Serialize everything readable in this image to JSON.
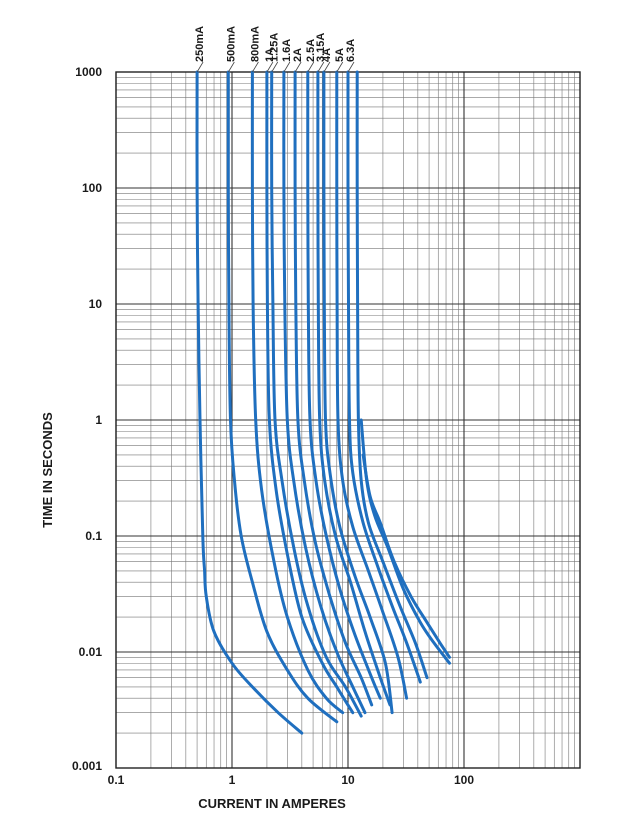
{
  "chart_data": {
    "type": "line",
    "title": "",
    "xlabel": "CURRENT IN AMPERES",
    "ylabel": "TIME IN SECONDS",
    "xscale": "log",
    "yscale": "log",
    "xlim": [
      0.1,
      1000
    ],
    "ylim": [
      0.001,
      1000
    ],
    "grid": true,
    "legend": "curve labels at top",
    "x_ticks": [
      0.1,
      1,
      10,
      100
    ],
    "x_tick_labels": [
      "0.1",
      "1",
      "10",
      "100"
    ],
    "y_ticks": [
      0.001,
      0.01,
      0.1,
      1,
      10,
      100,
      1000
    ],
    "y_tick_labels": [
      "0.001",
      "0.01",
      "0.1",
      "1",
      "10",
      "100",
      "1000"
    ],
    "line_color": "#1f6fbf",
    "grid_color": "#555555",
    "series": [
      {
        "name": "250mA",
        "points": [
          [
            0.5,
            1000
          ],
          [
            0.5,
            100
          ],
          [
            0.51,
            10
          ],
          [
            0.53,
            1
          ],
          [
            0.56,
            0.1
          ],
          [
            0.58,
            0.05
          ],
          [
            0.6,
            0.03
          ],
          [
            0.7,
            0.015
          ],
          [
            1,
            0.008
          ],
          [
            1.5,
            0.005
          ],
          [
            2.5,
            0.003
          ],
          [
            4,
            0.002
          ]
        ]
      },
      {
        "name": "500mA",
        "points": [
          [
            0.93,
            1000
          ],
          [
            0.93,
            100
          ],
          [
            0.94,
            10
          ],
          [
            0.97,
            1
          ],
          [
            1.05,
            0.3
          ],
          [
            1.2,
            0.1
          ],
          [
            1.5,
            0.04
          ],
          [
            2,
            0.015
          ],
          [
            3,
            0.007
          ],
          [
            4.5,
            0.004
          ],
          [
            8,
            0.0025
          ]
        ]
      },
      {
        "name": "800mA",
        "points": [
          [
            1.5,
            1000
          ],
          [
            1.5,
            100
          ],
          [
            1.52,
            10
          ],
          [
            1.6,
            1
          ],
          [
            1.8,
            0.25
          ],
          [
            2.3,
            0.06
          ],
          [
            3,
            0.02
          ],
          [
            4.5,
            0.007
          ],
          [
            6.5,
            0.004
          ],
          [
            9,
            0.003
          ]
        ]
      },
      {
        "name": "1A",
        "points": [
          [
            2,
            1000
          ],
          [
            2,
            100
          ],
          [
            2.02,
            10
          ],
          [
            2.1,
            1
          ],
          [
            2.4,
            0.25
          ],
          [
            3,
            0.07
          ],
          [
            4,
            0.02
          ],
          [
            6,
            0.008
          ],
          [
            8,
            0.005
          ],
          [
            11,
            0.003
          ]
        ]
      },
      {
        "name": "1.25A",
        "points": [
          [
            2.2,
            1000
          ],
          [
            2.2,
            100
          ],
          [
            2.25,
            10
          ],
          [
            2.35,
            1
          ],
          [
            2.7,
            0.3
          ],
          [
            3.4,
            0.08
          ],
          [
            4.5,
            0.025
          ],
          [
            6.5,
            0.009
          ],
          [
            9.5,
            0.005
          ],
          [
            13,
            0.0028
          ]
        ]
      },
      {
        "name": "1.6A",
        "points": [
          [
            2.8,
            1000
          ],
          [
            2.8,
            100
          ],
          [
            2.85,
            10
          ],
          [
            3,
            1
          ],
          [
            3.4,
            0.3
          ],
          [
            4.3,
            0.08
          ],
          [
            5.8,
            0.025
          ],
          [
            8,
            0.01
          ],
          [
            11,
            0.005
          ],
          [
            14,
            0.003
          ]
        ]
      },
      {
        "name": "2A",
        "points": [
          [
            3.5,
            1000
          ],
          [
            3.5,
            100
          ],
          [
            3.55,
            10
          ],
          [
            3.7,
            1
          ],
          [
            4.2,
            0.3
          ],
          [
            5.2,
            0.09
          ],
          [
            7,
            0.03
          ],
          [
            9.5,
            0.012
          ],
          [
            13,
            0.006
          ],
          [
            16,
            0.0035
          ]
        ]
      },
      {
        "name": "2.5A",
        "points": [
          [
            4.5,
            1000
          ],
          [
            4.5,
            100
          ],
          [
            4.55,
            10
          ],
          [
            4.7,
            1
          ],
          [
            5.3,
            0.3
          ],
          [
            6.5,
            0.1
          ],
          [
            8.5,
            0.035
          ],
          [
            11.5,
            0.014
          ],
          [
            16,
            0.006
          ],
          [
            19,
            0.004
          ]
        ]
      },
      {
        "name": "3.15A",
        "points": [
          [
            5.5,
            1000
          ],
          [
            5.5,
            100
          ],
          [
            5.55,
            10
          ],
          [
            5.7,
            1
          ],
          [
            6.3,
            0.3
          ],
          [
            7.8,
            0.1
          ],
          [
            10.5,
            0.04
          ],
          [
            14,
            0.015
          ],
          [
            19,
            0.006
          ],
          [
            23,
            0.0035
          ]
        ]
      },
      {
        "name": "4A",
        "points": [
          [
            6.2,
            1000
          ],
          [
            6.2,
            100
          ],
          [
            6.25,
            10
          ],
          [
            6.4,
            1
          ],
          [
            7,
            0.35
          ],
          [
            8.5,
            0.12
          ],
          [
            11.5,
            0.045
          ],
          [
            15.5,
            0.02
          ],
          [
            21,
            0.008
          ],
          [
            24,
            0.003
          ]
        ]
      },
      {
        "name": "5A",
        "points": [
          [
            8,
            1000
          ],
          [
            8,
            100
          ],
          [
            8.05,
            10
          ],
          [
            8.2,
            1
          ],
          [
            9,
            0.3
          ],
          [
            11,
            0.12
          ],
          [
            15,
            0.05
          ],
          [
            20,
            0.022
          ],
          [
            27,
            0.009
          ],
          [
            32,
            0.004
          ]
        ]
      },
      {
        "name": "6.3A",
        "points": [
          [
            10,
            1000
          ],
          [
            10,
            100
          ],
          [
            10.1,
            10
          ],
          [
            10.3,
            1
          ],
          [
            11,
            0.35
          ],
          [
            13.5,
            0.13
          ],
          [
            18,
            0.055
          ],
          [
            24,
            0.025
          ],
          [
            32,
            0.012
          ],
          [
            42,
            0.0055
          ]
        ]
      },
      {
        "name": "",
        "points": [
          [
            12,
            1000
          ],
          [
            12,
            100
          ],
          [
            12.1,
            10
          ],
          [
            12.3,
            1
          ],
          [
            13,
            0.3
          ],
          [
            15,
            0.13
          ],
          [
            20,
            0.06
          ],
          [
            28,
            0.025
          ],
          [
            38,
            0.012
          ],
          [
            48,
            0.006
          ]
        ]
      },
      {
        "name": "",
        "points": [
          [
            13,
            1
          ],
          [
            14.5,
            0.3
          ],
          [
            17,
            0.15
          ],
          [
            22,
            0.08
          ],
          [
            30,
            0.035
          ],
          [
            42,
            0.018
          ],
          [
            55,
            0.012
          ],
          [
            75,
            0.008
          ]
        ]
      },
      {
        "name": "",
        "points": [
          [
            13.5,
            0.5
          ],
          [
            15.5,
            0.22
          ],
          [
            19,
            0.13
          ],
          [
            25,
            0.06
          ],
          [
            35,
            0.03
          ],
          [
            48,
            0.018
          ],
          [
            62,
            0.012
          ],
          [
            75,
            0.009
          ]
        ]
      }
    ]
  }
}
